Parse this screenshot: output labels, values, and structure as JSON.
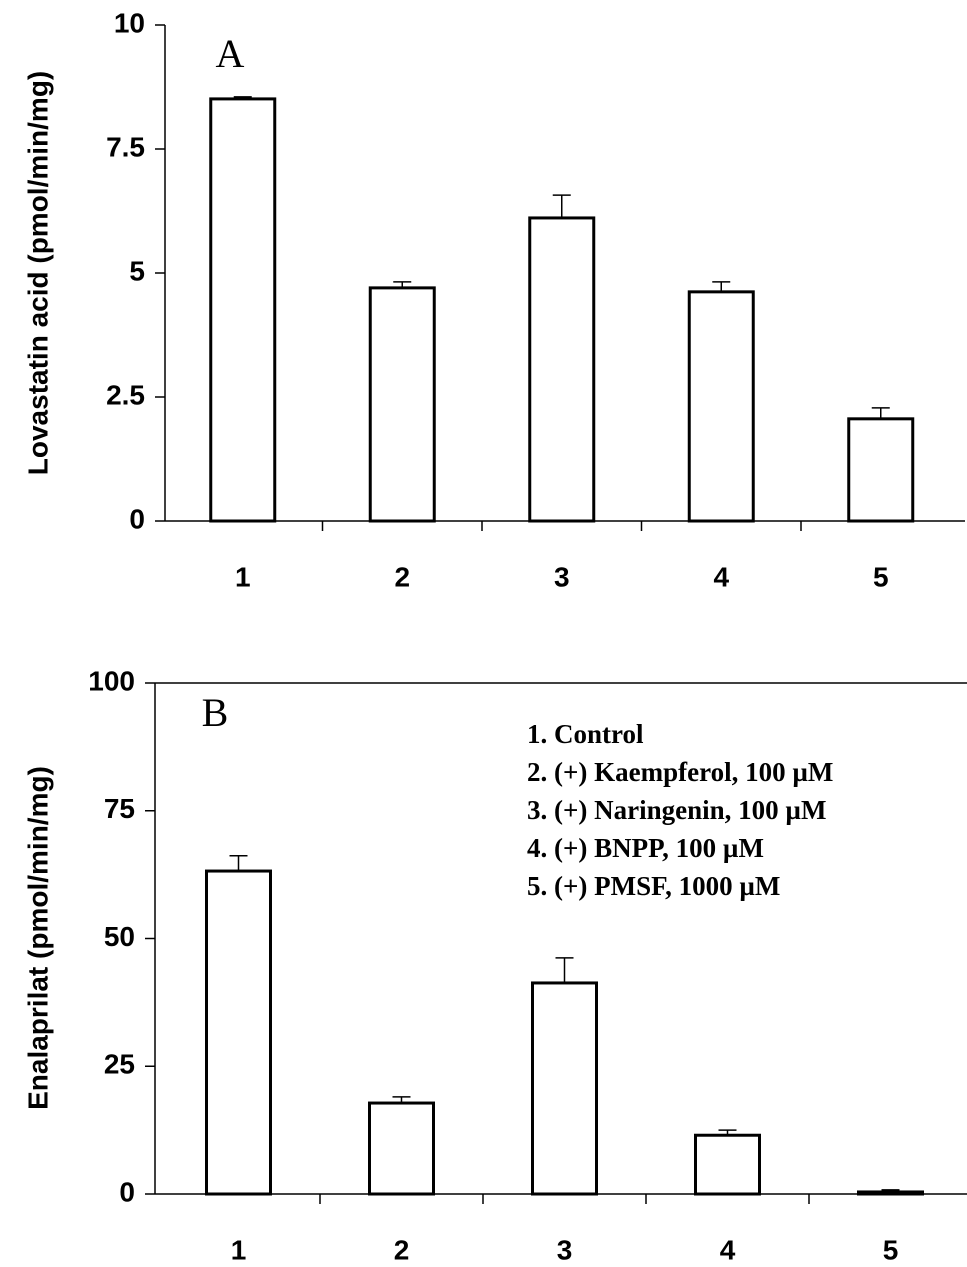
{
  "chart_data": [
    {
      "type": "bar",
      "panel_label": "A",
      "ylabel": "Lovastatin acid (pmol/min/mg)",
      "categories": [
        "1",
        "2",
        "3",
        "4",
        "5"
      ],
      "values": [
        8.51,
        4.7,
        6.11,
        4.62,
        2.06
      ],
      "errors": [
        0.04,
        0.12,
        0.46,
        0.2,
        0.22
      ],
      "color": "#ffffff",
      "ylim": [
        0,
        10
      ],
      "yticks": [
        0,
        2.5,
        5,
        7.5,
        10
      ],
      "frame_top": false
    },
    {
      "type": "bar",
      "panel_label": "B",
      "ylabel": "Enalaprilat (pmol/min/mg)",
      "categories": [
        "1",
        "2",
        "3",
        "4",
        "5"
      ],
      "values": [
        63.2,
        17.8,
        41.3,
        11.5,
        0.4
      ],
      "errors": [
        3,
        1.2,
        4.9,
        1,
        0.4
      ],
      "color": "#ffffff",
      "ylim": [
        0,
        100
      ],
      "yticks": [
        0,
        25,
        50,
        75,
        100
      ],
      "frame_top": true,
      "annotations": [
        "1. Control",
        "2. (+) Kaempferol, 100 µM",
        "3. (+) Naringenin, 100 µM",
        "4. (+) BNPP, 100 µM",
        "5. (+) PMSF, 1000 µM"
      ]
    }
  ]
}
